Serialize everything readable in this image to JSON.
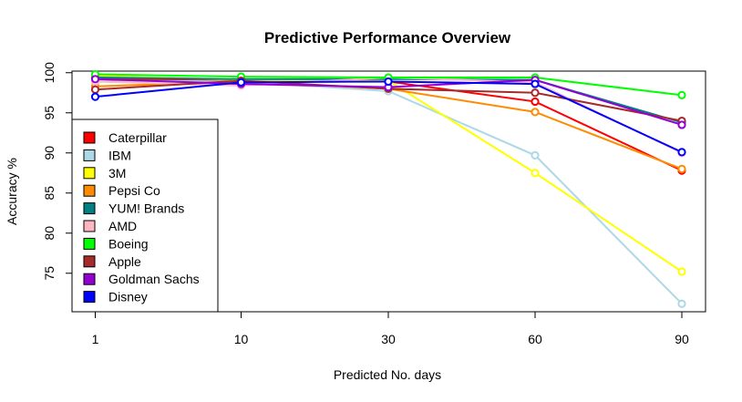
{
  "chart_data": {
    "type": "line",
    "title": "Predictive Performance Overview",
    "xlabel": "Predicted No. days",
    "ylabel": "Accuracy %",
    "categories": [
      "1",
      "10",
      "30",
      "60",
      "90"
    ],
    "yticks": [
      "75",
      "80",
      "85",
      "90",
      "95",
      "100"
    ],
    "ylim": [
      70.2,
      100.2
    ],
    "grid": false,
    "legend_position": "bottom-left",
    "series": [
      {
        "name": "Caterpillar",
        "color": "#ff0000",
        "values": [
          99.2,
          99.1,
          98.9,
          96.4,
          87.8
        ]
      },
      {
        "name": "IBM",
        "color": "#add8e6",
        "values": [
          99.0,
          98.9,
          97.7,
          89.7,
          71.2
        ]
      },
      {
        "name": "3M",
        "color": "#ffff00",
        "values": [
          99.6,
          99.1,
          99.0,
          87.5,
          75.2
        ]
      },
      {
        "name": "Pepsi Co",
        "color": "#ff8c00",
        "values": [
          98.3,
          98.9,
          98.0,
          95.1,
          88.0
        ]
      },
      {
        "name": "YUM! Brands",
        "color": "#008080",
        "values": [
          99.4,
          99.2,
          99.2,
          99.1,
          93.8
        ]
      },
      {
        "name": "AMD",
        "color": "#ffb6c1",
        "values": [
          98.9,
          98.4,
          99.4,
          98.8,
          90.0
        ]
      },
      {
        "name": "Boeing",
        "color": "#00ff00",
        "values": [
          99.8,
          99.5,
          99.4,
          99.4,
          97.2
        ]
      },
      {
        "name": "Apple",
        "color": "#a52a2a",
        "values": [
          97.9,
          99.0,
          98.0,
          97.5,
          94.0
        ]
      },
      {
        "name": "Goldman Sachs",
        "color": "#9400d3",
        "values": [
          99.2,
          98.6,
          98.2,
          99.1,
          93.5
        ]
      },
      {
        "name": "Disney",
        "color": "#0000ff",
        "values": [
          97.0,
          98.8,
          98.9,
          98.6,
          90.1
        ]
      }
    ]
  }
}
